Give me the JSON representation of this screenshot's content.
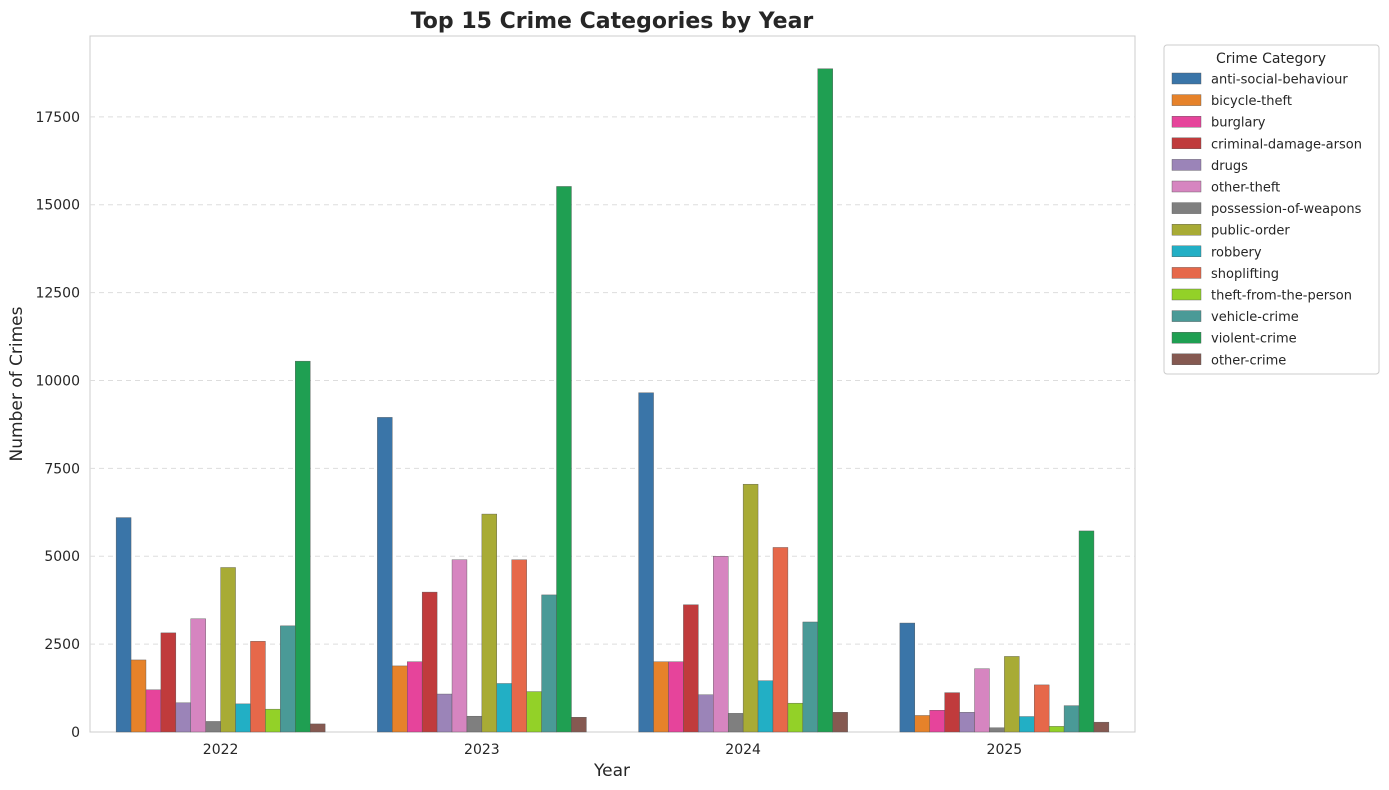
{
  "colors": {
    "anti-social-behaviour": "#3a75a8",
    "bicycle-theft": "#e6822a",
    "burglary": "#e6449b",
    "criminal-damage-arson": "#c03b3c",
    "drugs": "#9b84b8",
    "other-theft": "#d685c0",
    "possession-of-weapons": "#7f7f7f",
    "public-order": "#a8ab35",
    "robbery": "#22afc5",
    "shoplifting": "#e6684a",
    "theft-from-the-person": "#93d128",
    "vehicle-crime": "#4a9a97",
    "violent-crime": "#1f9f52",
    "other-crime": "#855951"
  },
  "chart_data": {
    "type": "bar",
    "title": "Top 15 Crime Categories by Year",
    "xlabel": "Year",
    "ylabel": "Number of Crimes",
    "legend_title": "Crime Category",
    "legend_position": "outside upper-right",
    "grid": "y dashed",
    "ylim": [
      0,
      19800
    ],
    "yticks": [
      0,
      2500,
      5000,
      7500,
      10000,
      12500,
      15000,
      17500
    ],
    "categories": [
      "2022",
      "2023",
      "2024",
      "2025"
    ],
    "series": [
      {
        "name": "anti-social-behaviour",
        "values": [
          6100,
          8950,
          9650,
          3100
        ]
      },
      {
        "name": "bicycle-theft",
        "values": [
          2050,
          1880,
          2000,
          470
        ]
      },
      {
        "name": "burglary",
        "values": [
          1200,
          2000,
          2000,
          620
        ]
      },
      {
        "name": "criminal-damage-arson",
        "values": [
          2820,
          3980,
          3620,
          1120
        ]
      },
      {
        "name": "drugs",
        "values": [
          830,
          1080,
          1060,
          560
        ]
      },
      {
        "name": "other-theft",
        "values": [
          3220,
          4900,
          5000,
          1800
        ]
      },
      {
        "name": "possession-of-weapons",
        "values": [
          300,
          450,
          530,
          120
        ]
      },
      {
        "name": "public-order",
        "values": [
          4680,
          6200,
          7050,
          2150
        ]
      },
      {
        "name": "robbery",
        "values": [
          800,
          1380,
          1460,
          440
        ]
      },
      {
        "name": "shoplifting",
        "values": [
          2580,
          4900,
          5250,
          1340
        ]
      },
      {
        "name": "theft-from-the-person",
        "values": [
          650,
          1150,
          820,
          160
        ]
      },
      {
        "name": "vehicle-crime",
        "values": [
          3020,
          3900,
          3130,
          750
        ]
      },
      {
        "name": "violent-crime",
        "values": [
          10550,
          15520,
          18870,
          5720
        ]
      },
      {
        "name": "other-crime",
        "values": [
          230,
          420,
          560,
          280
        ]
      }
    ]
  }
}
